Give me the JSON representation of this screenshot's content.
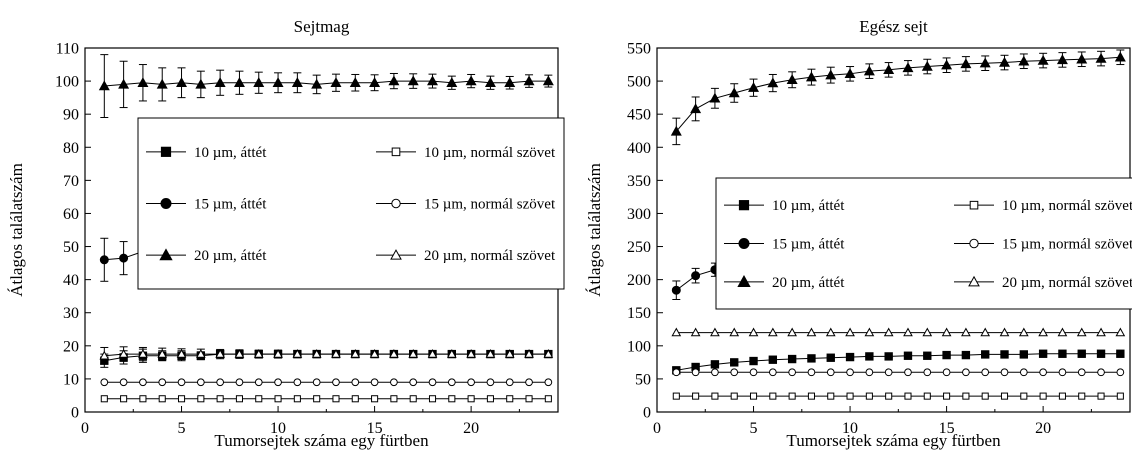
{
  "chart_data": [
    {
      "type": "line",
      "title": "Sejtmag",
      "xlabel": "Tumorsejtek száma egy fürtben",
      "ylabel": "Átlagos találatszám",
      "xlim": [
        0,
        24.5
      ],
      "ylim": [
        0,
        110
      ],
      "xticks": [
        0,
        5,
        10,
        15,
        20
      ],
      "yticks": [
        0,
        10,
        20,
        30,
        40,
        50,
        60,
        70,
        80,
        90,
        100,
        110
      ],
      "legend_placement": "right-middle",
      "legend_columns": 2,
      "x": [
        1,
        2,
        3,
        4,
        5,
        6,
        7,
        8,
        9,
        10,
        11,
        12,
        13,
        14,
        15,
        16,
        17,
        18,
        19,
        20,
        21,
        22,
        23,
        24
      ],
      "series": [
        {
          "name": "10 µm, áttét",
          "marker": "square",
          "filled": true,
          "values": [
            15.5,
            16.5,
            17,
            17,
            17,
            17,
            17.5,
            17.5,
            17.5,
            17.5,
            17.5,
            17.5,
            17.5,
            17.5,
            17.5,
            17.5,
            17.5,
            17.5,
            17.5,
            17.5,
            17.5,
            17.5,
            17.5,
            17.5
          ],
          "errors": [
            2,
            2,
            2,
            1.5,
            1.5,
            1.2,
            1,
            1,
            1,
            1,
            0.8,
            0.8,
            0.8,
            0.8,
            0.8,
            0.8,
            0.7,
            0.7,
            0.7,
            0.7,
            0.7,
            0.7,
            0.7,
            0.7
          ]
        },
        {
          "name": "10 µm, normál szövet",
          "marker": "square",
          "filled": false,
          "values": [
            4,
            4,
            4,
            4,
            4,
            4,
            4,
            4,
            4,
            4,
            4,
            4,
            4,
            4,
            4,
            4,
            4,
            4,
            4,
            4,
            4,
            4,
            4,
            4
          ]
        },
        {
          "name": "15 µm, áttét",
          "marker": "circle",
          "filled": true,
          "values": [
            46,
            46.5,
            48.5,
            48.5,
            48.5,
            48,
            48,
            48.5,
            48,
            48.5,
            48.5,
            48.5,
            48.5,
            48.5,
            48.5,
            48.5,
            49,
            48.5,
            49,
            48.5,
            48.5,
            48.5,
            48.5,
            48.5
          ],
          "errors": [
            6.5,
            5,
            4,
            3.5,
            3,
            2.8,
            2.6,
            2.4,
            2.2,
            2,
            2,
            1.8,
            1.8,
            1.6,
            1.6,
            1.5,
            1.4,
            1.4,
            1.4,
            1.3,
            1.3,
            1.3,
            1.2,
            1.2
          ]
        },
        {
          "name": "15 µm, normál szövet",
          "marker": "circle",
          "filled": false,
          "values": [
            9,
            9,
            9,
            9,
            9,
            9,
            9,
            9,
            9,
            9,
            9,
            9,
            9,
            9,
            9,
            9,
            9,
            9,
            9,
            9,
            9,
            9,
            9,
            9
          ]
        },
        {
          "name": "20 µm, áttét",
          "marker": "triangle",
          "filled": true,
          "values": [
            98.5,
            99,
            99.5,
            99,
            99.5,
            99,
            99.5,
            99.5,
            99.5,
            99.5,
            99.5,
            99,
            99.5,
            99.5,
            99.5,
            100,
            100,
            100,
            99.5,
            100,
            99.5,
            99.5,
            100,
            100
          ],
          "errors": [
            9.5,
            7,
            5.5,
            5,
            4.5,
            4,
            3.8,
            3.5,
            3.2,
            3,
            3,
            2.8,
            2.6,
            2.5,
            2.4,
            2.3,
            2.2,
            2.1,
            2,
            2,
            2,
            1.9,
            1.9,
            1.8
          ]
        },
        {
          "name": "20 µm, normál szövet",
          "marker": "triangle",
          "filled": false,
          "values": [
            17,
            17.5,
            17.5,
            17.5,
            17.5,
            17.5,
            17.5,
            17.5,
            17.5,
            17.5,
            17.5,
            17.5,
            17.5,
            17.5,
            17.5,
            17.5,
            17.5,
            17.5,
            17.5,
            17.5,
            17.5,
            17.5,
            17.5,
            17.5
          ],
          "errors": [
            2.5,
            2.2,
            2,
            1.8,
            1.6,
            1.5,
            1.4,
            1.3,
            1.2,
            1.2,
            1.1,
            1.1,
            1,
            1,
            1,
            1,
            1,
            1,
            1,
            1,
            1,
            1,
            1,
            1
          ]
        }
      ]
    },
    {
      "type": "line",
      "title": "Egész sejt",
      "xlabel": "Tumorsejtek száma egy fürtben",
      "ylabel": "Átlagos találatszám",
      "xlim": [
        0,
        24.5
      ],
      "ylim": [
        0,
        550
      ],
      "xticks": [
        0,
        5,
        10,
        15,
        20
      ],
      "yticks": [
        0,
        50,
        100,
        150,
        200,
        250,
        300,
        350,
        400,
        450,
        500,
        550
      ],
      "legend_placement": "right-middle",
      "legend_columns": 2,
      "x": [
        1,
        2,
        3,
        4,
        5,
        6,
        7,
        8,
        9,
        10,
        11,
        12,
        13,
        14,
        15,
        16,
        17,
        18,
        19,
        20,
        21,
        22,
        23,
        24
      ],
      "series": [
        {
          "name": "10 µm, áttét",
          "marker": "square",
          "filled": true,
          "values": [
            63,
            68,
            72,
            75,
            77,
            79,
            80,
            81,
            82,
            83,
            84,
            84,
            85,
            85,
            86,
            86,
            87,
            87,
            87,
            88,
            88,
            88,
            88,
            88
          ],
          "errors": [
            4,
            3.5,
            3,
            3,
            2.5,
            2.5,
            2.2,
            2,
            2,
            2,
            1.8,
            1.8,
            1.6,
            1.6,
            1.5,
            1.5,
            1.5,
            1.4,
            1.4,
            1.4,
            1.3,
            1.3,
            1.3,
            1.3
          ]
        },
        {
          "name": "10 µm, normál szövet",
          "marker": "square",
          "filled": false,
          "values": [
            24,
            24,
            24,
            24,
            24,
            24,
            24,
            24,
            24,
            24,
            24,
            24,
            24,
            24,
            24,
            24,
            24,
            24,
            24,
            24,
            24,
            24,
            24,
            24
          ]
        },
        {
          "name": "15 µm, áttét",
          "marker": "circle",
          "filled": true,
          "values": [
            184,
            206,
            215,
            220,
            224,
            228,
            231,
            233,
            234,
            236,
            237,
            238,
            239,
            241,
            242,
            243,
            244,
            245,
            246,
            247,
            247,
            248,
            248,
            249
          ],
          "errors": [
            14,
            11,
            10,
            9,
            8,
            8,
            7.5,
            7,
            7,
            6.5,
            6.5,
            6,
            6,
            6,
            5.5,
            5.5,
            5.5,
            5.5,
            5,
            5,
            5,
            5,
            5,
            5
          ]
        },
        {
          "name": "15 µm, normál szövet",
          "marker": "circle",
          "filled": false,
          "values": [
            60,
            60,
            60,
            60,
            60,
            60,
            60,
            60,
            60,
            60,
            60,
            60,
            60,
            60,
            60,
            60,
            60,
            60,
            60,
            60,
            60,
            60,
            60,
            60
          ]
        },
        {
          "name": "20 µm, áttét",
          "marker": "triangle",
          "filled": true,
          "values": [
            424,
            458,
            474,
            482,
            490,
            497,
            502,
            506,
            509,
            511,
            515,
            517,
            520,
            522,
            524,
            526,
            527,
            528,
            530,
            531,
            532,
            533,
            534,
            536
          ],
          "errors": [
            20,
            18,
            15,
            14,
            13,
            13,
            12,
            12,
            12,
            11,
            11,
            11,
            11,
            11,
            11,
            11,
            11,
            11,
            11,
            11,
            11,
            11,
            11,
            11
          ]
        },
        {
          "name": "20 µm, normál szövet",
          "marker": "triangle",
          "filled": false,
          "values": [
            120,
            120,
            120,
            120,
            120,
            120,
            120,
            120,
            120,
            120,
            120,
            120,
            120,
            120,
            120,
            120,
            120,
            120,
            120,
            120,
            120,
            120,
            120,
            120
          ]
        }
      ]
    }
  ]
}
